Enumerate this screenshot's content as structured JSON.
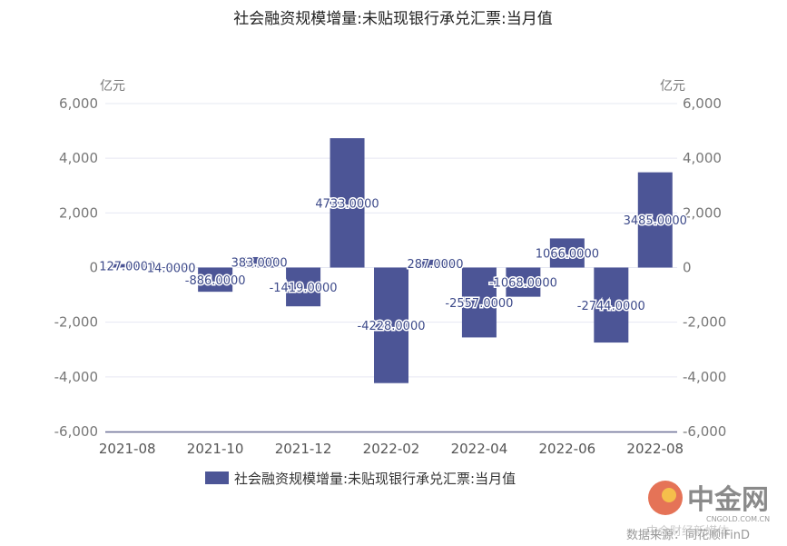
{
  "chart_data": {
    "type": "bar",
    "title": "社会融资规模增量:未贴现银行承兑汇票:当月值",
    "y_unit_left": "亿元",
    "y_unit_right": "亿元",
    "ylim": [
      -6000,
      6000
    ],
    "yticks": [
      "6,000",
      "4,000",
      "2,000",
      "0",
      "-2,000",
      "-4,000",
      "-6,000"
    ],
    "yticks_values": [
      6000,
      4000,
      2000,
      0,
      -2000,
      -4000,
      -6000
    ],
    "categories": [
      "2021-08",
      "2021-09",
      "2021-10",
      "2021-11",
      "2021-12",
      "2022-01",
      "2022-02",
      "2022-03",
      "2022-04",
      "2022-05",
      "2022-06",
      "2022-07",
      "2022-08"
    ],
    "x_tick_labels": [
      "2021-08",
      "2021-10",
      "2021-12",
      "2022-02",
      "2022-04",
      "2022-06",
      "2022-08"
    ],
    "series": [
      {
        "name": "社会融资规模增量:未贴现银行承兑汇票:当月值",
        "color": "#4c5596",
        "values": [
          127,
          14,
          -886,
          383,
          -1419,
          4733,
          -4228,
          287,
          -2557,
          -1068,
          1066,
          -2744,
          3485
        ],
        "labels": [
          "127.0000",
          "14.0000",
          "-886.0000",
          "383.0000",
          "-1419.0000",
          "4733.0000",
          "-4228.0000",
          "287.0000",
          "-2557.0000",
          "-1068.0000",
          "1066.0000",
          "-2744.0000",
          "3485.0000"
        ]
      }
    ],
    "grid": true,
    "legend_position": "bottom"
  },
  "watermark": {
    "logo_text": "中金网",
    "logo_sub": "CNGOLD.COM.CN",
    "overlay_text": "中金财经新媒体",
    "source": "数据来源：同花顺iFinD"
  }
}
